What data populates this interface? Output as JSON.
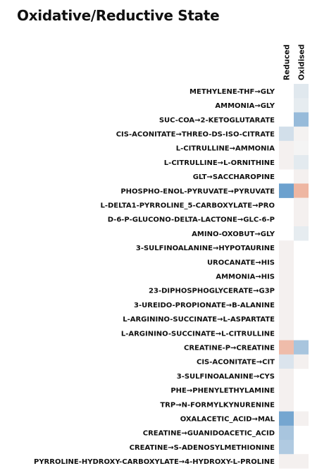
{
  "chart_data": {
    "type": "heatmap",
    "title": "Oxidative/Reductive State",
    "columns": [
      "Reduced",
      "Oxidised"
    ],
    "rows": [
      "METHYLENE-THF→GLY",
      "AMMONIA→GLY",
      "SUC-COA→2-KETOGLUTARATE",
      "CIS-ACONITATE→THREO-DS-ISO-CITRATE",
      "L-CITRULLINE→AMMONIA",
      "L-CITRULLINE→L-ORNITHINE",
      "GLT→SACCHAROPINE",
      "PHOSPHO-ENOL-PYRUVATE→PYRUVATE",
      "L-DELTA1-PYRROLINE_5-CARBOXYLATE→PRO",
      "D-6-P-GLUCONO-DELTA-LACTONE→GLC-6-P",
      "AMINO-OXOBUT→GLY",
      "3-SULFINOALANINE→HYPOTAURINE",
      "UROCANATE→HIS",
      "AMMONIA→HIS",
      "23-DIPHOSPHOGLYCERATE→G3P",
      "3-UREIDO-PROPIONATE→B-ALANINE",
      "L-ARGININO-SUCCINATE→L-ASPARTATE",
      "L-ARGININO-SUCCINATE→L-CITRULLINE",
      "CREATINE-P→CREATINE",
      "CIS-ACONITATE→CIT",
      "3-SULFINOALANINE→CYS",
      "PHE→PHENYLETHYLAMINE",
      "TRP→N-FORMYLKYNURENINE",
      "OXALACETIC_ACID→MAL",
      "CREATINE→GUANIDOACETIC_ACID",
      "CREATINE→S-ADENOSYLMETHIONINE",
      "PYRROLINE-HYDROXY-CARBOXYLATE→4-HYDROXY-L-PROLINE"
    ],
    "values": [
      [
        null,
        -0.12
      ],
      [
        null,
        -0.08
      ],
      [
        null,
        -0.55
      ],
      [
        -0.2,
        0.02
      ],
      [
        0.03,
        0.0
      ],
      [
        0.03,
        -0.1
      ],
      [
        null,
        0.03
      ],
      [
        -0.8,
        0.5
      ],
      [
        null,
        0.03
      ],
      [
        null,
        0.03
      ],
      [
        null,
        -0.08
      ],
      [
        0.03,
        null
      ],
      [
        0.03,
        null
      ],
      [
        0.03,
        null
      ],
      [
        0.03,
        null
      ],
      [
        0.03,
        null
      ],
      [
        0.03,
        null
      ],
      [
        0.03,
        null
      ],
      [
        0.45,
        -0.45
      ],
      [
        -0.15,
        0.03
      ],
      [
        0.03,
        null
      ],
      [
        0.03,
        null
      ],
      [
        0.03,
        null
      ],
      [
        -0.75,
        0.03
      ],
      [
        -0.45,
        null
      ],
      [
        -0.4,
        null
      ],
      [
        0.03,
        0.03
      ]
    ],
    "scale": "diverging: negative = blue, positive = orange/red"
  }
}
